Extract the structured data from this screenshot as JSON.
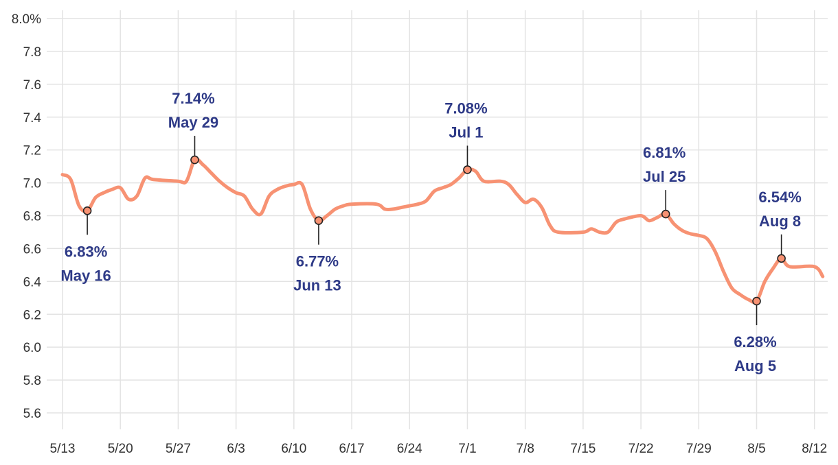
{
  "chart_data": {
    "type": "line",
    "title": "",
    "xlabel": "",
    "ylabel": "",
    "x_ticks": [
      "5/13",
      "5/20",
      "5/27",
      "6/3",
      "6/10",
      "6/17",
      "6/24",
      "7/1",
      "7/8",
      "7/15",
      "7/22",
      "7/29",
      "8/5",
      "8/12"
    ],
    "y_ticks": [
      "8.0%",
      "7.8",
      "7.6",
      "7.4",
      "7.2",
      "7.0",
      "6.8",
      "6.6",
      "6.4",
      "6.2",
      "6.0",
      "5.8",
      "5.6"
    ],
    "ylim": [
      5.6,
      8.0
    ],
    "grid": true,
    "series": [
      {
        "color": "#f79273",
        "points": [
          [
            "2024-05-13",
            7.05
          ],
          [
            "2024-05-14",
            7.02
          ],
          [
            "2024-05-15",
            6.86
          ],
          [
            "2024-05-16",
            6.83
          ],
          [
            "2024-05-17",
            6.91
          ],
          [
            "2024-05-18",
            6.94
          ],
          [
            "2024-05-19",
            6.96
          ],
          [
            "2024-05-20",
            6.97
          ],
          [
            "2024-05-21",
            6.9
          ],
          [
            "2024-05-22",
            6.92
          ],
          [
            "2024-05-23",
            7.03
          ],
          [
            "2024-05-24",
            7.02
          ],
          [
            "2024-05-27",
            7.01
          ],
          [
            "2024-05-28",
            7.01
          ],
          [
            "2024-05-29",
            7.14
          ],
          [
            "2024-05-30",
            7.11
          ],
          [
            "2024-05-31",
            7.06
          ],
          [
            "2024-06-01",
            7.01
          ],
          [
            "2024-06-02",
            6.97
          ],
          [
            "2024-06-03",
            6.94
          ],
          [
            "2024-06-04",
            6.92
          ],
          [
            "2024-06-05",
            6.84
          ],
          [
            "2024-06-06",
            6.81
          ],
          [
            "2024-06-07",
            6.92
          ],
          [
            "2024-06-08",
            6.96
          ],
          [
            "2024-06-09",
            6.98
          ],
          [
            "2024-06-10",
            6.99
          ],
          [
            "2024-06-11",
            6.99
          ],
          [
            "2024-06-12",
            6.84
          ],
          [
            "2024-06-13",
            6.77
          ],
          [
            "2024-06-14",
            6.8
          ],
          [
            "2024-06-15",
            6.84
          ],
          [
            "2024-06-16",
            6.86
          ],
          [
            "2024-06-17",
            6.87
          ],
          [
            "2024-06-20",
            6.87
          ],
          [
            "2024-06-21",
            6.84
          ],
          [
            "2024-06-22",
            6.84
          ],
          [
            "2024-06-23",
            6.85
          ],
          [
            "2024-06-24",
            6.86
          ],
          [
            "2024-06-25",
            6.87
          ],
          [
            "2024-06-26",
            6.89
          ],
          [
            "2024-06-27",
            6.95
          ],
          [
            "2024-06-28",
            6.97
          ],
          [
            "2024-06-29",
            6.99
          ],
          [
            "2024-06-30",
            7.03
          ],
          [
            "2024-07-01",
            7.08
          ],
          [
            "2024-07-02",
            7.07
          ],
          [
            "2024-07-03",
            7.01
          ],
          [
            "2024-07-05",
            7.01
          ],
          [
            "2024-07-06",
            6.99
          ],
          [
            "2024-07-07",
            6.93
          ],
          [
            "2024-07-08",
            6.88
          ],
          [
            "2024-07-09",
            6.9
          ],
          [
            "2024-07-10",
            6.85
          ],
          [
            "2024-07-11",
            6.74
          ],
          [
            "2024-07-12",
            6.7
          ],
          [
            "2024-07-15",
            6.7
          ],
          [
            "2024-07-16",
            6.72
          ],
          [
            "2024-07-17",
            6.7
          ],
          [
            "2024-07-18",
            6.7
          ],
          [
            "2024-07-19",
            6.76
          ],
          [
            "2024-07-20",
            6.78
          ],
          [
            "2024-07-22",
            6.8
          ],
          [
            "2024-07-23",
            6.77
          ],
          [
            "2024-07-24",
            6.79
          ],
          [
            "2024-07-25",
            6.81
          ],
          [
            "2024-07-26",
            6.75
          ],
          [
            "2024-07-27",
            6.71
          ],
          [
            "2024-07-28",
            6.69
          ],
          [
            "2024-07-29",
            6.68
          ],
          [
            "2024-07-30",
            6.66
          ],
          [
            "2024-07-31",
            6.58
          ],
          [
            "2024-08-01",
            6.46
          ],
          [
            "2024-08-02",
            6.36
          ],
          [
            "2024-08-03",
            6.32
          ],
          [
            "2024-08-04",
            6.29
          ],
          [
            "2024-08-05",
            6.28
          ],
          [
            "2024-08-06",
            6.4
          ],
          [
            "2024-08-07",
            6.48
          ],
          [
            "2024-08-08",
            6.54
          ],
          [
            "2024-08-09",
            6.49
          ],
          [
            "2024-08-12",
            6.49
          ],
          [
            "2024-08-13",
            6.43
          ]
        ]
      }
    ],
    "annotations": [
      {
        "date": "2024-05-16",
        "value": 6.83,
        "label_value": "6.83%",
        "label_date": "May 16",
        "position": "below"
      },
      {
        "date": "2024-05-29",
        "value": 7.14,
        "label_value": "7.14%",
        "label_date": "May 29",
        "position": "above"
      },
      {
        "date": "2024-06-13",
        "value": 6.77,
        "label_value": "6.77%",
        "label_date": "Jun 13",
        "position": "below"
      },
      {
        "date": "2024-07-01",
        "value": 7.08,
        "label_value": "7.08%",
        "label_date": "Jul 1",
        "position": "above"
      },
      {
        "date": "2024-07-25",
        "value": 6.81,
        "label_value": "6.81%",
        "label_date": "Jul 25",
        "position": "above"
      },
      {
        "date": "2024-08-05",
        "value": 6.28,
        "label_value": "6.28%",
        "label_date": "Aug 5",
        "position": "below"
      },
      {
        "date": "2024-08-08",
        "value": 6.54,
        "label_value": "6.54%",
        "label_date": "Aug 8",
        "position": "above"
      }
    ],
    "colors": {
      "line": "#f79273",
      "marker_fill": "#f79273",
      "marker_stroke": "#222222",
      "annotation_text": "#2e3a87",
      "grid": "#e3e3e3",
      "tick_text": "#333333"
    }
  }
}
